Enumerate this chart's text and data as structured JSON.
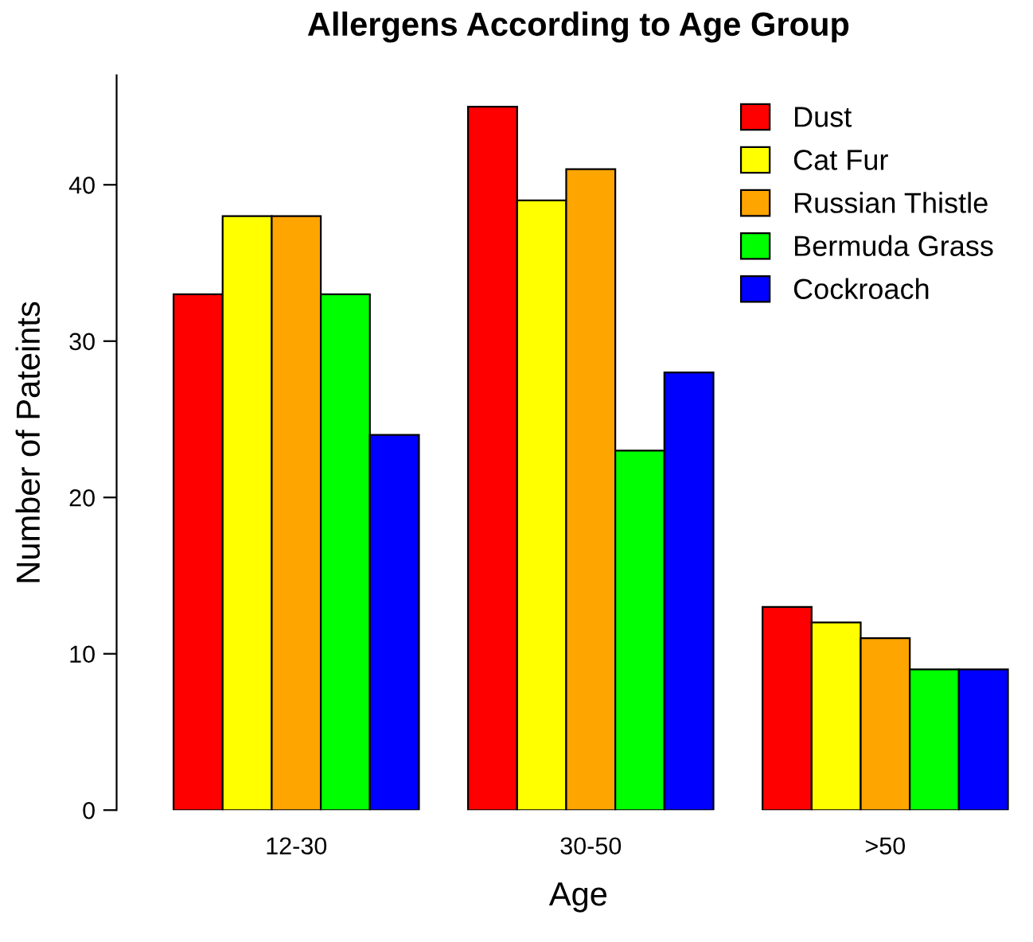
{
  "chart_data": {
    "type": "bar",
    "title": "Allergens According to Age Group",
    "xlabel": "Age",
    "ylabel": "Number of Pateints",
    "categories": [
      "12-30",
      "30-50",
      ">50"
    ],
    "series": [
      {
        "name": "Dust",
        "color": "#ff0000",
        "values": [
          33,
          45,
          13
        ]
      },
      {
        "name": "Cat Fur",
        "color": "#ffff00",
        "values": [
          38,
          39,
          12
        ]
      },
      {
        "name": "Russian Thistle",
        "color": "#ffa500",
        "values": [
          38,
          41,
          11
        ]
      },
      {
        "name": "Bermuda Grass",
        "color": "#00ff00",
        "values": [
          33,
          23,
          9
        ]
      },
      {
        "name": "Cockroach",
        "color": "#0000ff",
        "values": [
          24,
          28,
          9
        ]
      }
    ],
    "ylim": [
      0,
      47
    ],
    "yticks": [
      0,
      10,
      20,
      30,
      40
    ],
    "grid": false,
    "legend": "top right"
  }
}
